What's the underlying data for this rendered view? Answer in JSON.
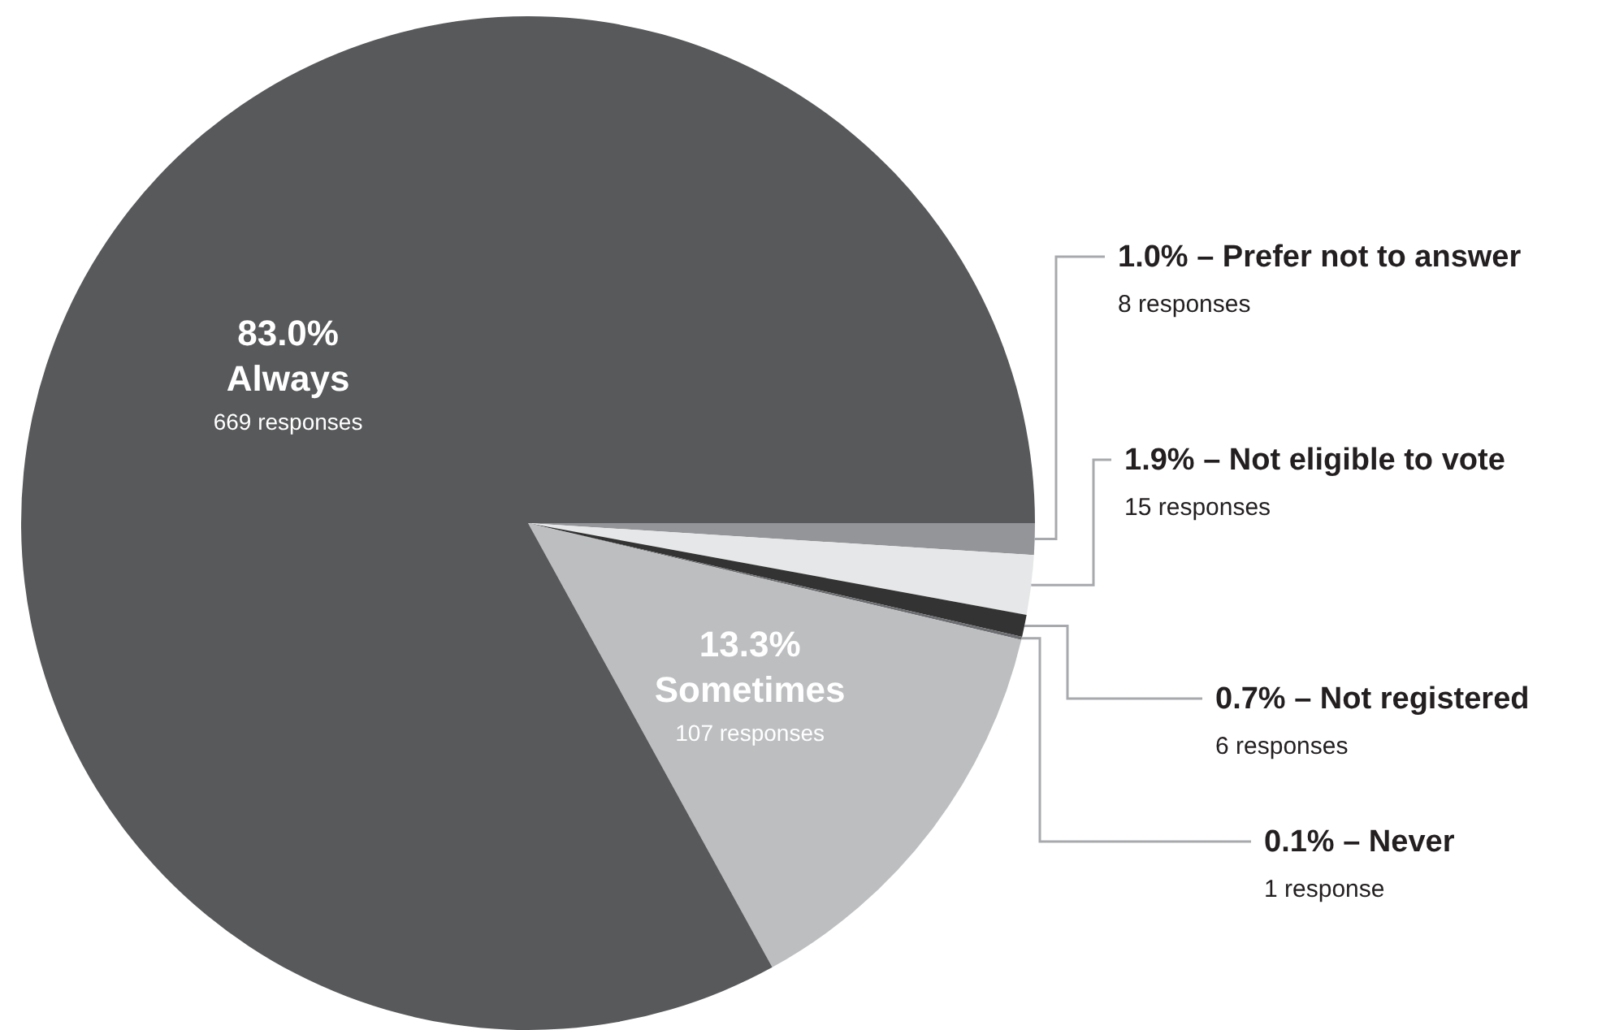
{
  "chart_data": {
    "type": "pie",
    "categories": [
      "Prefer not to answer",
      "Not eligible to vote",
      "Not registered",
      "Never",
      "Sometimes",
      "Always"
    ],
    "values": [
      1.0,
      1.9,
      0.7,
      0.1,
      13.3,
      83.0
    ],
    "value_labels": [
      "1.0%",
      "1.9%",
      "0.7%",
      "0.1%",
      "13.3%",
      "83.0%"
    ],
    "colors": [
      "#939598",
      "#e6e7e8",
      "#333333",
      "#6d6e71",
      "#bcbec0",
      "#58595b"
    ],
    "annotations": [
      "8 responses",
      "15 responses",
      "6 responses",
      "1 response",
      "107 responses",
      "669 responses"
    ],
    "legend": false
  }
}
